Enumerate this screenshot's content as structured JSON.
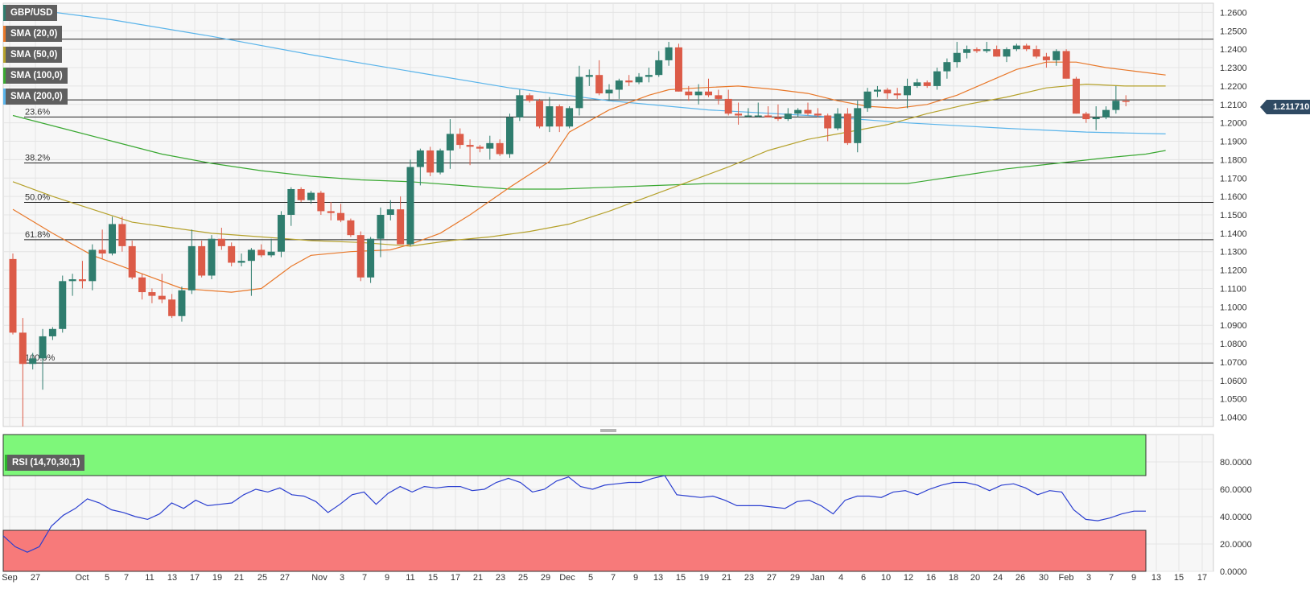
{
  "symbol": "GBP/USD",
  "last_price": "1.211710",
  "legend": [
    {
      "label": "SMA (20,0)",
      "color": "#e8782a"
    },
    {
      "label": "SMA (50,0)",
      "color": "#b5a12b"
    },
    {
      "label": "SMA (100,0)",
      "color": "#3aa832"
    },
    {
      "label": "SMA (200,0)",
      "color": "#5ab4ea"
    }
  ],
  "rsi_label": "RSI (14,70,30,1)",
  "chart_data": {
    "type": "candlestick",
    "colors": {
      "up": "#2f7d6e",
      "down": "#dc5b48",
      "sma20": "#e8782a",
      "sma50": "#b5a12b",
      "sma100": "#3aa832",
      "sma200": "#5ab4ea",
      "rsi": "#2b3fd0",
      "overbought": "#7ef77a",
      "oversold": "#f77a7a"
    },
    "price_axis": {
      "min": 1.035,
      "max": 1.265,
      "ticks": [
        "1.0400",
        "1.0500",
        "1.0600",
        "1.0700",
        "1.0800",
        "1.0900",
        "1.1000",
        "1.1100",
        "1.1200",
        "1.1300",
        "1.1400",
        "1.1500",
        "1.1600",
        "1.1700",
        "1.1800",
        "1.1900",
        "1.2000",
        "1.2100",
        "1.2200",
        "1.2300",
        "1.2400",
        "1.2500",
        "1.2600"
      ]
    },
    "x_ticks": [
      "Sep",
      "27",
      "Oct",
      "5",
      "7",
      "11",
      "13",
      "17",
      "19",
      "21",
      "25",
      "27",
      "Nov",
      "3",
      "7",
      "9",
      "11",
      "15",
      "17",
      "21",
      "23",
      "25",
      "29",
      "Dec",
      "5",
      "7",
      "9",
      "13",
      "15",
      "19",
      "21",
      "23",
      "27",
      "29",
      "Jan",
      "4",
      "6",
      "10",
      "12",
      "16",
      "18",
      "20",
      "24",
      "26",
      "30",
      "Feb",
      "3",
      "7",
      "9",
      "13",
      "15",
      "17"
    ],
    "horizontal_lines": [
      1.2455,
      1.2125
    ],
    "fibonacci": [
      {
        "label": "23.6%",
        "value": 1.2032
      },
      {
        "label": "38.2%",
        "value": 1.1782
      },
      {
        "label": "50.0%",
        "value": 1.1568
      },
      {
        "label": "61.8%",
        "value": 1.1365
      },
      {
        "label": "100.0%",
        "value": 1.0695
      }
    ],
    "candles": [
      [
        1.126,
        1.129,
        1.085,
        1.086
      ],
      [
        1.086,
        1.094,
        1.035,
        1.069
      ],
      [
        1.069,
        1.075,
        1.066,
        1.072
      ],
      [
        1.072,
        1.088,
        1.055,
        1.084
      ],
      [
        1.084,
        1.089,
        1.082,
        1.088
      ],
      [
        1.088,
        1.117,
        1.086,
        1.114
      ],
      [
        1.114,
        1.118,
        1.106,
        1.115
      ],
      [
        1.115,
        1.125,
        1.11,
        1.114
      ],
      [
        1.114,
        1.134,
        1.109,
        1.131
      ],
      [
        1.131,
        1.142,
        1.126,
        1.129
      ],
      [
        1.129,
        1.149,
        1.128,
        1.145
      ],
      [
        1.145,
        1.149,
        1.13,
        1.133
      ],
      [
        1.133,
        1.136,
        1.115,
        1.116
      ],
      [
        1.116,
        1.118,
        1.104,
        1.108
      ],
      [
        1.108,
        1.11,
        1.102,
        1.106
      ],
      [
        1.106,
        1.118,
        1.102,
        1.104
      ],
      [
        1.104,
        1.107,
        1.094,
        1.095
      ],
      [
        1.095,
        1.111,
        1.092,
        1.109
      ],
      [
        1.109,
        1.142,
        1.107,
        1.133
      ],
      [
        1.133,
        1.136,
        1.116,
        1.117
      ],
      [
        1.117,
        1.139,
        1.115,
        1.137
      ],
      [
        1.137,
        1.143,
        1.131,
        1.133
      ],
      [
        1.133,
        1.135,
        1.122,
        1.124
      ],
      [
        1.124,
        1.129,
        1.122,
        1.125
      ],
      [
        1.125,
        1.132,
        1.106,
        1.131
      ],
      [
        1.131,
        1.134,
        1.127,
        1.128
      ],
      [
        1.128,
        1.137,
        1.127,
        1.13
      ],
      [
        1.13,
        1.152,
        1.127,
        1.15
      ],
      [
        1.15,
        1.165,
        1.144,
        1.164
      ],
      [
        1.164,
        1.165,
        1.157,
        1.158
      ],
      [
        1.158,
        1.163,
        1.156,
        1.162
      ],
      [
        1.162,
        1.163,
        1.15,
        1.152
      ],
      [
        1.152,
        1.157,
        1.147,
        1.151
      ],
      [
        1.151,
        1.156,
        1.146,
        1.147
      ],
      [
        1.147,
        1.148,
        1.138,
        1.139
      ],
      [
        1.139,
        1.141,
        1.114,
        1.116
      ],
      [
        1.116,
        1.138,
        1.113,
        1.137
      ],
      [
        1.137,
        1.154,
        1.127,
        1.15
      ],
      [
        1.15,
        1.158,
        1.147,
        1.153
      ],
      [
        1.153,
        1.16,
        1.136,
        1.134
      ],
      [
        1.134,
        1.18,
        1.133,
        1.176
      ],
      [
        1.176,
        1.186,
        1.166,
        1.185
      ],
      [
        1.185,
        1.187,
        1.171,
        1.173
      ],
      [
        1.173,
        1.186,
        1.172,
        1.185
      ],
      [
        1.185,
        1.202,
        1.175,
        1.194
      ],
      [
        1.194,
        1.197,
        1.186,
        1.188
      ],
      [
        1.188,
        1.191,
        1.177,
        1.187
      ],
      [
        1.187,
        1.188,
        1.184,
        1.186
      ],
      [
        1.186,
        1.193,
        1.18,
        1.189
      ],
      [
        1.189,
        1.191,
        1.182,
        1.183
      ],
      [
        1.183,
        1.205,
        1.181,
        1.203
      ],
      [
        1.203,
        1.218,
        1.201,
        1.215
      ],
      [
        1.215,
        1.216,
        1.211,
        1.212
      ],
      [
        1.212,
        1.213,
        1.197,
        1.198
      ],
      [
        1.198,
        1.214,
        1.195,
        1.209
      ],
      [
        1.209,
        1.21,
        1.195,
        1.198
      ],
      [
        1.198,
        1.209,
        1.197,
        1.208
      ],
      [
        1.208,
        1.231,
        1.204,
        1.225
      ],
      [
        1.225,
        1.229,
        1.22,
        1.226
      ],
      [
        1.226,
        1.234,
        1.215,
        1.216
      ],
      [
        1.216,
        1.221,
        1.212,
        1.218
      ],
      [
        1.218,
        1.224,
        1.213,
        1.223
      ],
      [
        1.223,
        1.226,
        1.22,
        1.222
      ],
      [
        1.222,
        1.227,
        1.221,
        1.225
      ],
      [
        1.225,
        1.23,
        1.222,
        1.226
      ],
      [
        1.226,
        1.239,
        1.225,
        1.234
      ],
      [
        1.234,
        1.244,
        1.231,
        1.241
      ],
      [
        1.241,
        1.243,
        1.217,
        1.217
      ],
      [
        1.217,
        1.22,
        1.212,
        1.215
      ],
      [
        1.215,
        1.221,
        1.21,
        1.217
      ],
      [
        1.217,
        1.224,
        1.214,
        1.215
      ],
      [
        1.215,
        1.218,
        1.21,
        1.213
      ],
      [
        1.213,
        1.218,
        1.204,
        1.205
      ],
      [
        1.205,
        1.211,
        1.199,
        1.204
      ],
      [
        1.204,
        1.208,
        1.203,
        1.204
      ],
      [
        1.204,
        1.211,
        1.203,
        1.204
      ],
      [
        1.204,
        1.209,
        1.203,
        1.203
      ],
      [
        1.203,
        1.21,
        1.201,
        1.202
      ],
      [
        1.202,
        1.208,
        1.201,
        1.205
      ],
      [
        1.205,
        1.208,
        1.203,
        1.207
      ],
      [
        1.207,
        1.211,
        1.204,
        1.205
      ],
      [
        1.205,
        1.208,
        1.203,
        1.204
      ],
      [
        1.204,
        1.205,
        1.19,
        1.197
      ],
      [
        1.197,
        1.208,
        1.196,
        1.205
      ],
      [
        1.205,
        1.208,
        1.188,
        1.189
      ],
      [
        1.189,
        1.212,
        1.184,
        1.208
      ],
      [
        1.208,
        1.219,
        1.206,
        1.217
      ],
      [
        1.217,
        1.22,
        1.214,
        1.218
      ],
      [
        1.218,
        1.219,
        1.213,
        1.216
      ],
      [
        1.216,
        1.219,
        1.213,
        1.215
      ],
      [
        1.215,
        1.224,
        1.208,
        1.22
      ],
      [
        1.22,
        1.224,
        1.219,
        1.222
      ],
      [
        1.222,
        1.223,
        1.219,
        1.22
      ],
      [
        1.22,
        1.23,
        1.218,
        1.228
      ],
      [
        1.228,
        1.235,
        1.224,
        1.233
      ],
      [
        1.233,
        1.244,
        1.23,
        1.238
      ],
      [
        1.238,
        1.242,
        1.235,
        1.24
      ],
      [
        1.24,
        1.241,
        1.238,
        1.239
      ],
      [
        1.239,
        1.244,
        1.238,
        1.24
      ],
      [
        1.24,
        1.242,
        1.236,
        1.236
      ],
      [
        1.236,
        1.241,
        1.233,
        1.24
      ],
      [
        1.24,
        1.243,
        1.239,
        1.242
      ],
      [
        1.242,
        1.243,
        1.239,
        1.24
      ],
      [
        1.24,
        1.242,
        1.235,
        1.236
      ],
      [
        1.236,
        1.238,
        1.23,
        1.234
      ],
      [
        1.234,
        1.24,
        1.231,
        1.239
      ],
      [
        1.239,
        1.24,
        1.226,
        1.224
      ],
      [
        1.224,
        1.225,
        1.205,
        1.205
      ],
      [
        1.205,
        1.206,
        1.2,
        1.202
      ],
      [
        1.202,
        1.209,
        1.196,
        1.203
      ],
      [
        1.203,
        1.209,
        1.202,
        1.207
      ],
      [
        1.207,
        1.22,
        1.205,
        1.212
      ],
      [
        1.212,
        1.215,
        1.209,
        1.2117
      ]
    ],
    "sma20_points": [
      [
        0,
        1.153
      ],
      [
        4,
        1.14
      ],
      [
        8,
        1.128
      ],
      [
        13,
        1.118
      ],
      [
        17,
        1.11
      ],
      [
        22,
        1.108
      ],
      [
        25,
        1.11
      ],
      [
        28,
        1.122
      ],
      [
        30,
        1.128
      ],
      [
        34,
        1.13
      ],
      [
        38,
        1.131
      ],
      [
        40,
        1.134
      ],
      [
        43,
        1.14
      ],
      [
        46,
        1.15
      ],
      [
        50,
        1.165
      ],
      [
        54,
        1.179
      ],
      [
        56,
        1.195
      ],
      [
        60,
        1.207
      ],
      [
        64,
        1.215
      ],
      [
        66,
        1.218
      ],
      [
        69,
        1.219
      ],
      [
        73,
        1.22
      ],
      [
        77,
        1.218
      ],
      [
        80,
        1.216
      ],
      [
        83,
        1.212
      ],
      [
        86,
        1.209
      ],
      [
        89,
        1.208
      ],
      [
        92,
        1.21
      ],
      [
        95,
        1.215
      ],
      [
        98,
        1.222
      ],
      [
        101,
        1.229
      ],
      [
        104,
        1.233
      ],
      [
        107,
        1.233
      ],
      [
        110,
        1.23
      ],
      [
        113,
        1.228
      ],
      [
        116,
        1.226
      ]
    ],
    "sma50_points": [
      [
        0,
        1.168
      ],
      [
        4,
        1.16
      ],
      [
        8,
        1.153
      ],
      [
        12,
        1.146
      ],
      [
        16,
        1.143
      ],
      [
        20,
        1.14
      ],
      [
        25,
        1.138
      ],
      [
        30,
        1.136
      ],
      [
        35,
        1.135
      ],
      [
        40,
        1.133
      ],
      [
        44,
        1.136
      ],
      [
        48,
        1.138
      ],
      [
        52,
        1.141
      ],
      [
        56,
        1.145
      ],
      [
        60,
        1.152
      ],
      [
        64,
        1.16
      ],
      [
        68,
        1.168
      ],
      [
        72,
        1.176
      ],
      [
        76,
        1.185
      ],
      [
        80,
        1.191
      ],
      [
        84,
        1.195
      ],
      [
        88,
        1.199
      ],
      [
        92,
        1.205
      ],
      [
        96,
        1.21
      ],
      [
        100,
        1.214
      ],
      [
        104,
        1.219
      ],
      [
        108,
        1.221
      ],
      [
        112,
        1.22
      ],
      [
        116,
        1.22
      ]
    ],
    "sma100_points": [
      [
        0,
        1.204
      ],
      [
        5,
        1.197
      ],
      [
        10,
        1.19
      ],
      [
        15,
        1.183
      ],
      [
        20,
        1.178
      ],
      [
        25,
        1.174
      ],
      [
        30,
        1.171
      ],
      [
        35,
        1.169
      ],
      [
        40,
        1.168
      ],
      [
        45,
        1.166
      ],
      [
        50,
        1.164
      ],
      [
        55,
        1.164
      ],
      [
        60,
        1.165
      ],
      [
        65,
        1.166
      ],
      [
        70,
        1.167
      ],
      [
        75,
        1.167
      ],
      [
        80,
        1.167
      ],
      [
        85,
        1.167
      ],
      [
        90,
        1.167
      ],
      [
        95,
        1.171
      ],
      [
        100,
        1.175
      ],
      [
        105,
        1.178
      ],
      [
        110,
        1.181
      ],
      [
        114,
        1.183
      ],
      [
        116,
        1.185
      ]
    ],
    "sma200_points": [
      [
        0,
        1.263
      ],
      [
        10,
        1.256
      ],
      [
        20,
        1.247
      ],
      [
        30,
        1.237
      ],
      [
        40,
        1.228
      ],
      [
        50,
        1.219
      ],
      [
        60,
        1.212
      ],
      [
        70,
        1.207
      ],
      [
        80,
        1.204
      ],
      [
        90,
        1.2
      ],
      [
        100,
        1.197
      ],
      [
        108,
        1.195
      ],
      [
        116,
        1.194
      ]
    ],
    "rsi": {
      "axis_ticks": [
        "0.0000",
        "20.0000",
        "40.0000",
        "60.0000",
        "80.0000"
      ],
      "overbought": 70,
      "oversold": 30,
      "values": [
        26,
        18,
        14,
        18,
        33,
        41,
        46,
        53,
        50,
        45,
        43,
        40,
        38,
        42,
        50,
        46,
        52,
        48,
        49,
        50,
        56,
        60,
        58,
        61,
        56,
        55,
        51,
        43,
        49,
        56,
        58,
        49,
        57,
        62,
        58,
        62,
        61,
        62,
        62,
        59,
        60,
        65,
        68,
        65,
        58,
        60,
        66,
        69,
        62,
        60,
        63,
        64,
        65,
        65,
        68,
        70,
        56,
        55,
        54,
        55,
        52,
        48,
        48,
        48,
        47,
        46,
        51,
        52,
        48,
        42,
        52,
        55,
        55,
        54,
        58,
        59,
        56,
        60,
        63,
        65,
        65,
        63,
        59,
        63,
        64,
        61,
        56,
        59,
        58,
        45,
        38,
        37,
        39,
        42,
        44,
        44
      ]
    }
  }
}
